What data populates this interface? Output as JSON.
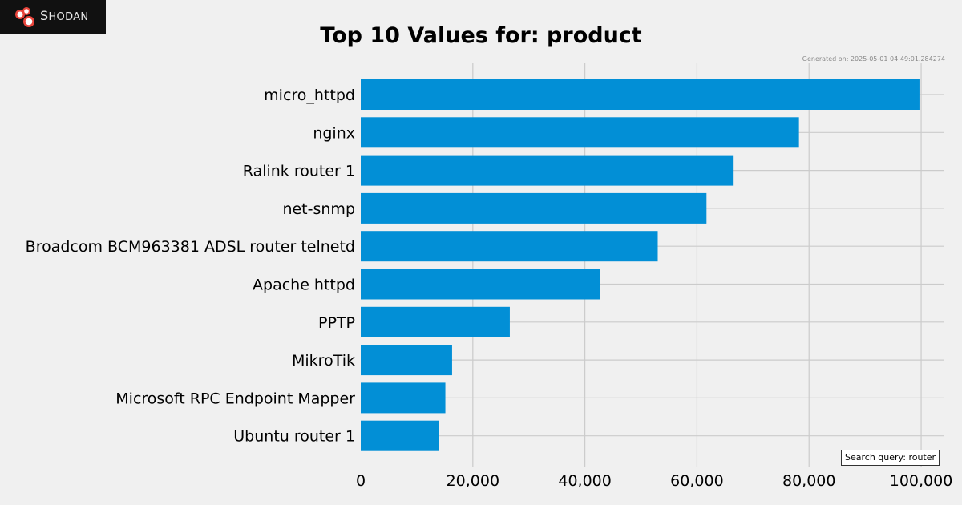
{
  "brand": {
    "logo_text_initial": "S",
    "logo_text_rest": "HODAN",
    "logo_icon": "shodan-logo-icon"
  },
  "generated_text": "Generated on: 2025-05-01 04:49:01.284274",
  "search_query_text": "Search query: router",
  "colors": {
    "bar": "#028fd6",
    "background": "#f0f0f0",
    "grid": "#cbcbcb",
    "logo_bg": "#111111",
    "logo_accent": "#e8453c"
  },
  "chart_data": {
    "type": "bar",
    "orientation": "horizontal",
    "title": "Top 10 Values for: product",
    "xlabel": "",
    "ylabel": "",
    "categories": [
      "micro_httpd",
      "nginx",
      "Ralink router 1",
      "net-snmp",
      "Broadcom BCM963381 ADSL router telnetd",
      "Apache httpd",
      "PPTP",
      "MikroTik",
      "Microsoft RPC Endpoint Mapper",
      "Ubuntu router 1"
    ],
    "values": [
      99700,
      78200,
      66400,
      61700,
      53000,
      42700,
      26600,
      16300,
      15100,
      13900
    ],
    "xlim": [
      0,
      104000
    ],
    "xticks": [
      0,
      20000,
      40000,
      60000,
      80000,
      100000
    ],
    "xtick_labels": [
      "0",
      "20,000",
      "40,000",
      "60,000",
      "80,000",
      "100,000"
    ],
    "grid": true,
    "legend": "none"
  }
}
